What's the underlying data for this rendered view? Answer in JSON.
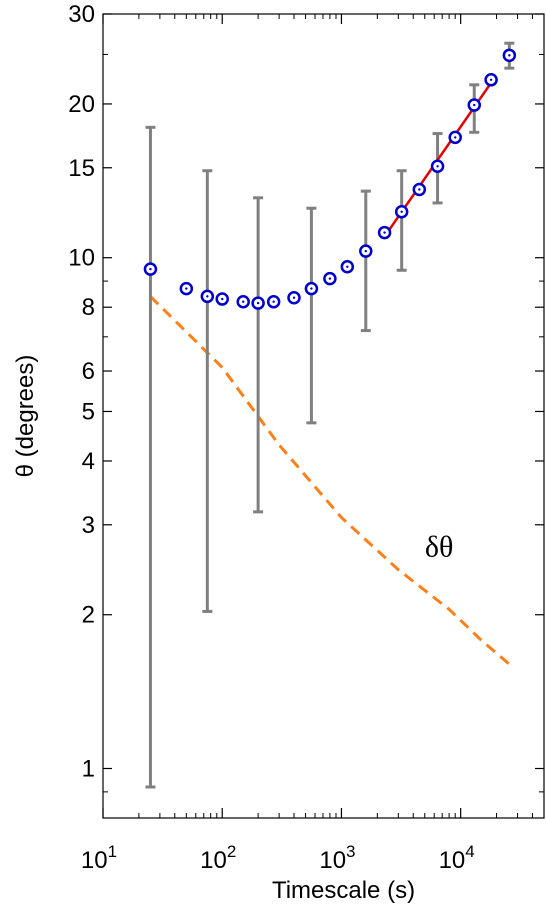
{
  "chart_data": {
    "type": "scatter",
    "title": "",
    "xlabel": "Timescale (s)",
    "ylabel": "θ (degrees)",
    "xscale": "log",
    "yscale": "log",
    "xlim": [
      10,
      50000
    ],
    "ylim": [
      0.8,
      30
    ],
    "grid": false,
    "x_ticks": [
      {
        "value": 10,
        "base": "10",
        "exp": "1"
      },
      {
        "value": 100,
        "base": "10",
        "exp": "2"
      },
      {
        "value": 1000,
        "base": "10",
        "exp": "3"
      },
      {
        "value": 10000,
        "base": "10",
        "exp": "4"
      }
    ],
    "y_ticks": [
      {
        "value": 1,
        "label": "1"
      },
      {
        "value": 2,
        "label": "2"
      },
      {
        "value": 3,
        "label": "3"
      },
      {
        "value": 4,
        "label": "4"
      },
      {
        "value": 5,
        "label": "5"
      },
      {
        "value": 6,
        "label": "6"
      },
      {
        "value": 8,
        "label": "8"
      },
      {
        "value": 10,
        "label": "10"
      },
      {
        "value": 15,
        "label": "15"
      },
      {
        "value": 20,
        "label": "20"
      },
      {
        "value": 30,
        "label": "30"
      }
    ],
    "series": [
      {
        "style": "blue-open-circles",
        "color": "#0000cc",
        "x": [
          25,
          50,
          75,
          100,
          150,
          200,
          270,
          400,
          560,
          800,
          1120,
          1600,
          2300,
          3200,
          4500,
          6400,
          9000,
          13000,
          18000,
          25600
        ],
        "y": [
          9.5,
          8.7,
          8.4,
          8.3,
          8.2,
          8.15,
          8.2,
          8.35,
          8.7,
          9.1,
          9.6,
          10.3,
          11.2,
          12.3,
          13.6,
          15.1,
          17.2,
          19.9,
          22.3,
          24.9
        ]
      },
      {
        "style": "gray-error-bars",
        "color": "#808080",
        "bars": [
          {
            "x": 25,
            "low": 0.92,
            "high": 18.0
          },
          {
            "x": 75,
            "low": 2.03,
            "high": 14.8
          },
          {
            "x": 200,
            "low": 3.18,
            "high": 13.1
          },
          {
            "x": 560,
            "low": 4.75,
            "high": 12.5
          },
          {
            "x": 1600,
            "low": 7.2,
            "high": 13.5
          },
          {
            "x": 3200,
            "low": 9.45,
            "high": 14.8
          },
          {
            "x": 6400,
            "low": 12.8,
            "high": 17.5
          },
          {
            "x": 13000,
            "low": 17.6,
            "high": 21.8
          },
          {
            "x": 25600,
            "low": 23.5,
            "high": 26.3
          }
        ]
      },
      {
        "style": "red-fit-line",
        "color": "#e00000",
        "x": [
          2300,
          18000
        ],
        "y": [
          11.0,
          22.0
        ]
      },
      {
        "style": "orange-dashed",
        "name": "δθ",
        "color": "#ff7f1a",
        "x": [
          25,
          100,
          300,
          1000,
          3000,
          8000,
          15000,
          25600
        ],
        "y": [
          8.4,
          6.1,
          4.3,
          3.1,
          2.45,
          2.05,
          1.78,
          1.6
        ]
      }
    ],
    "annotations": [
      {
        "text": "δθ",
        "x": 6600,
        "y": 2.6
      }
    ]
  }
}
